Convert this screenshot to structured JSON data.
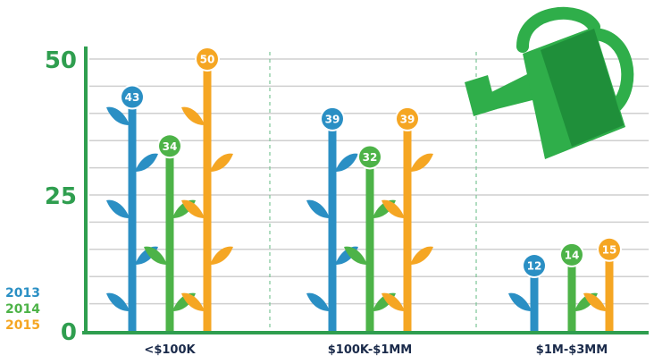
{
  "chart_data": {
    "type": "bar",
    "title": "",
    "xlabel": "",
    "ylabel": "",
    "ylim": [
      0,
      50
    ],
    "y_ticks": [
      "0",
      "25",
      "50"
    ],
    "grid": true,
    "categories": [
      "<$100K",
      "$100K-$1MM",
      "$1M-$3MM"
    ],
    "series": [
      {
        "name": "2013",
        "color": "#2a8fc4",
        "values": [
          43,
          39,
          12
        ]
      },
      {
        "name": "2014",
        "color": "#4db348",
        "values": [
          34,
          32,
          14
        ]
      },
      {
        "name": "2015",
        "color": "#f5a623",
        "values": [
          50,
          39,
          15
        ]
      }
    ],
    "legend_position": "bottom-left",
    "decoration": "watering-can-icon"
  },
  "colors": {
    "axis": "#2f9e4f",
    "tick_label": "#2f9e4f",
    "grid": "#cfcfcf",
    "category_label": "#1a2a4a",
    "watering_can": "#2fae4a",
    "watering_can_dark": "#1f8f3a"
  }
}
